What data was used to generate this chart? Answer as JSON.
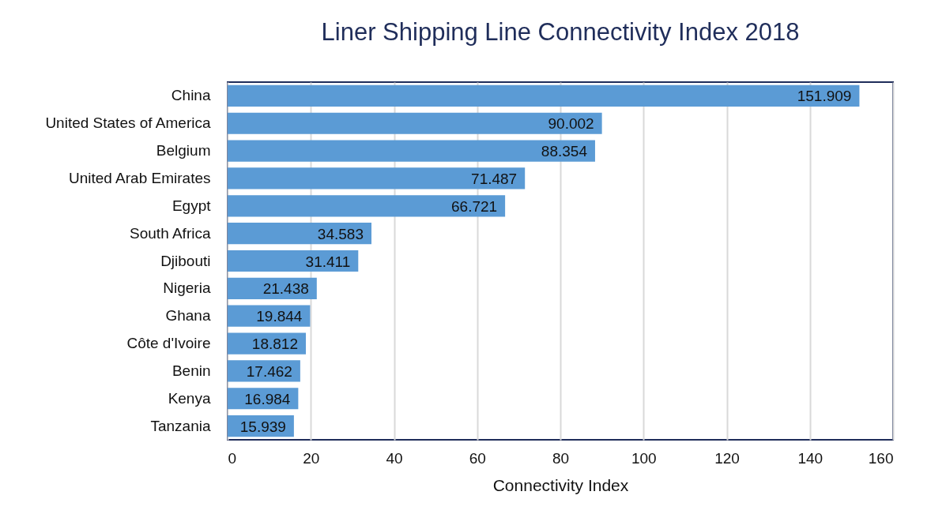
{
  "chart_data": {
    "type": "bar",
    "orientation": "horizontal",
    "title": "Liner Shipping Line Connectivity Index  2018",
    "xlabel": "Connectivity Index",
    "categories": [
      "China",
      "United States of America",
      "Belgium",
      "United Arab Emirates",
      "Egypt",
      "South Africa",
      "Djibouti",
      "Nigeria",
      "Ghana",
      "Côte d'Ivoire",
      "Benin",
      "Kenya",
      "Tanzania"
    ],
    "values": [
      151.909,
      90.002,
      88.354,
      71.487,
      66.721,
      34.583,
      31.411,
      21.438,
      19.844,
      18.812,
      17.462,
      16.984,
      15.939
    ],
    "color": "#5b9bd5",
    "xlim": [
      0,
      160
    ],
    "xticks": [
      0,
      20,
      40,
      60,
      80,
      100,
      120,
      140,
      160
    ],
    "grid": "x",
    "data_labels": true
  }
}
